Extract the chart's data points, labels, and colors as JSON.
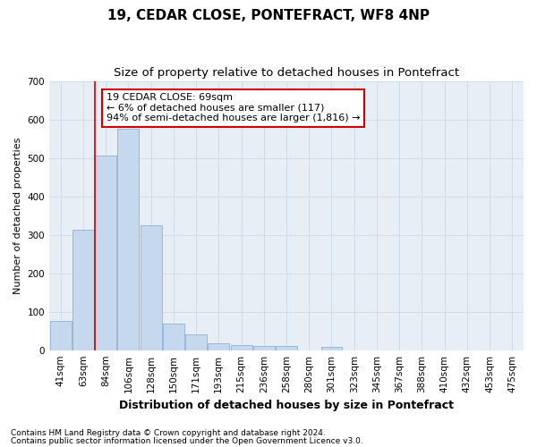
{
  "title1": "19, CEDAR CLOSE, PONTEFRACT, WF8 4NP",
  "title2": "Size of property relative to detached houses in Pontefract",
  "xlabel": "Distribution of detached houses by size in Pontefract",
  "ylabel": "Number of detached properties",
  "categories": [
    "41sqm",
    "63sqm",
    "84sqm",
    "106sqm",
    "128sqm",
    "150sqm",
    "171sqm",
    "193sqm",
    "215sqm",
    "236sqm",
    "258sqm",
    "280sqm",
    "301sqm",
    "323sqm",
    "345sqm",
    "367sqm",
    "388sqm",
    "410sqm",
    "432sqm",
    "453sqm",
    "475sqm"
  ],
  "values": [
    75,
    312,
    505,
    575,
    325,
    68,
    40,
    18,
    13,
    11,
    11,
    0,
    8,
    0,
    0,
    0,
    0,
    0,
    0,
    0,
    0
  ],
  "bar_color": "#c5d8ee",
  "bar_edge_color": "#8ab4d4",
  "grid_color": "#d0dce8",
  "bg_color": "#e8eef6",
  "vline_color": "#cc0000",
  "vline_x": 1.5,
  "annotation_text": "19 CEDAR CLOSE: 69sqm\n← 6% of detached houses are smaller (117)\n94% of semi-detached houses are larger (1,816) →",
  "annotation_box_color": "#cc0000",
  "ylim": [
    0,
    700
  ],
  "yticks": [
    0,
    100,
    200,
    300,
    400,
    500,
    600,
    700
  ],
  "footer1": "Contains HM Land Registry data © Crown copyright and database right 2024.",
  "footer2": "Contains public sector information licensed under the Open Government Licence v3.0.",
  "title1_fontsize": 11,
  "title2_fontsize": 9.5,
  "xlabel_fontsize": 9,
  "ylabel_fontsize": 8,
  "tick_fontsize": 7.5,
  "footer_fontsize": 6.5,
  "ann_fontsize": 8
}
